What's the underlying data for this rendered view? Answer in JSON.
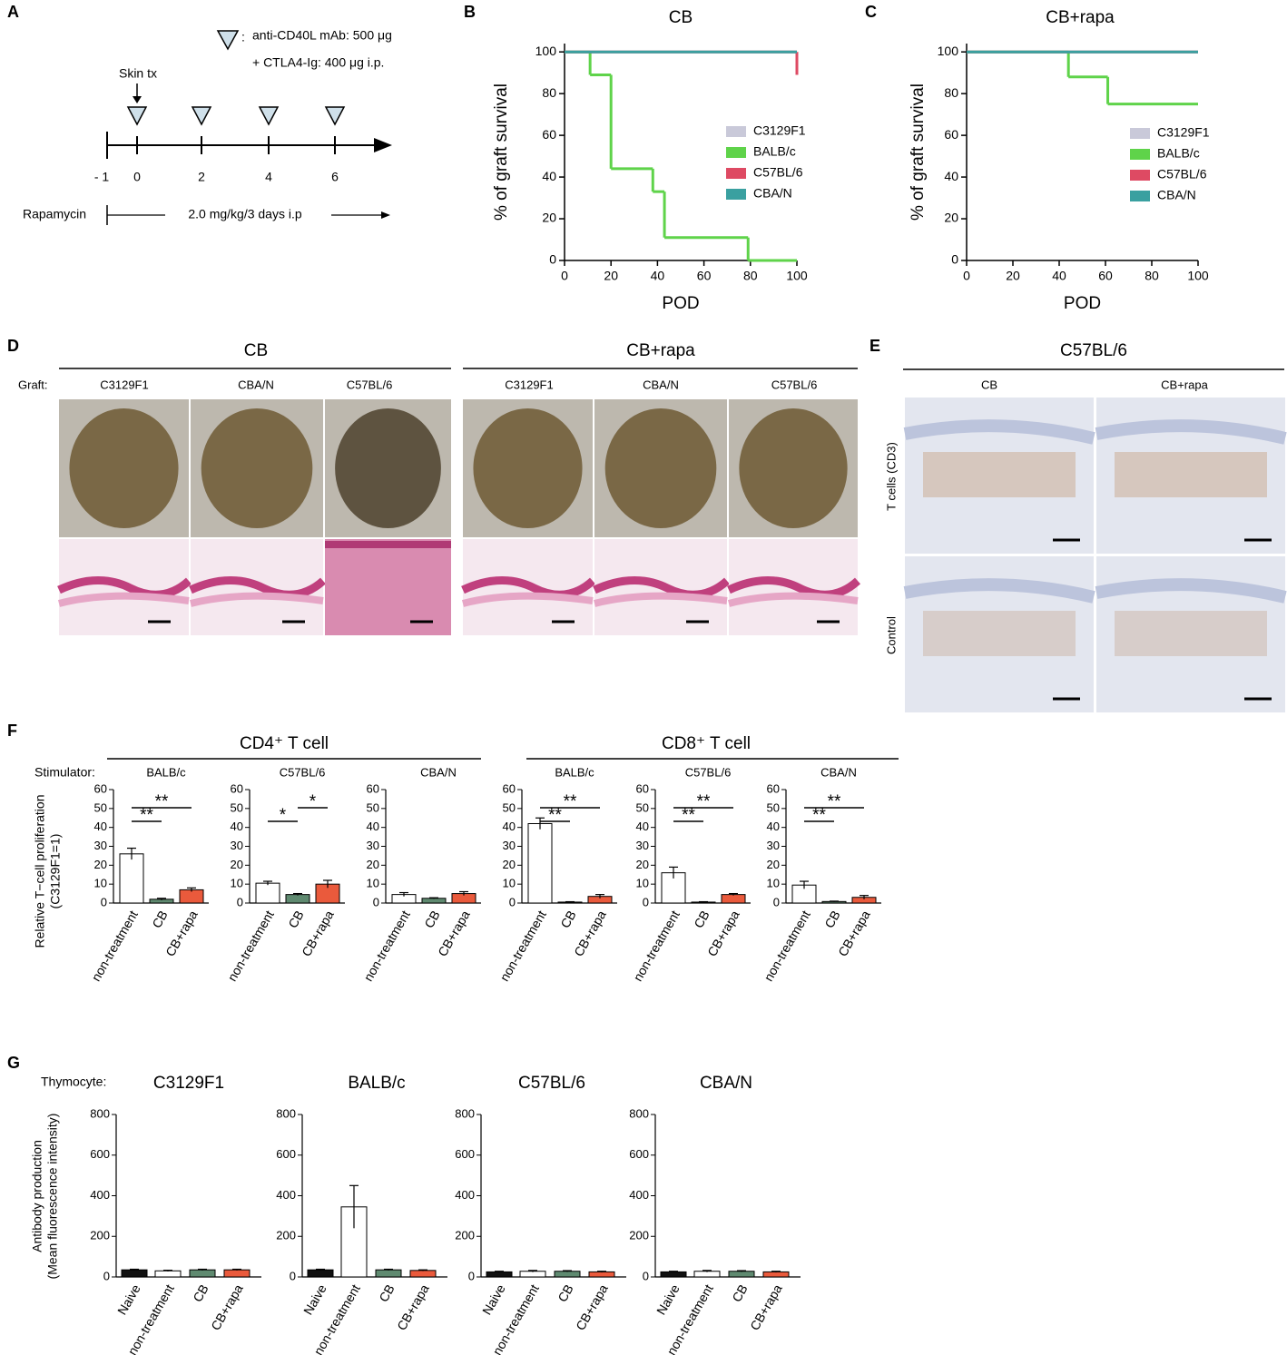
{
  "diagram": {
    "label": "A",
    "legend_lines": [
      "anti-CD40L mAb: 500 μg",
      "+ CTLA4-Ig: 400 μg i.p."
    ],
    "colon": ":",
    "skin_tx": "Skin tx",
    "timeline_ticks": [
      "- 1",
      "0",
      "2",
      "4",
      "6"
    ],
    "rapamycin": "Rapamycin",
    "dose": "2.0 mg/kg/3 days i.p"
  },
  "panel_d": {
    "label": "D",
    "groups": [
      "CB",
      "CB+rapa"
    ],
    "graft": "Graft:",
    "columns": [
      "C3129F1",
      "CBA/N",
      "C57BL/6",
      "C3129F1",
      "CBA/N",
      "C57BL/6"
    ]
  },
  "panel_e": {
    "label": "E",
    "title": "C57BL/6",
    "columns": [
      "CB",
      "CB+rapa"
    ],
    "rows": [
      "T cells (CD3)",
      "Control"
    ]
  },
  "panel_f": {
    "label": "F",
    "groups": [
      "CD4⁺ T cell",
      "CD8⁺ T cell"
    ],
    "stimulator": "Stimulator:",
    "ylabel": [
      "Relative T−cell proliferation",
      "(C3129F1=1)"
    ]
  },
  "panel_g": {
    "label": "G",
    "thymocyte": "Thymocyte:",
    "ylabel": [
      "Antibody production",
      "(Mean fluorescence intensity)"
    ]
  },
  "chart_data": [
    {
      "type": "survival",
      "panel": "B",
      "title": "CB",
      "xlabel": "POD",
      "ylabel": "% of graft survival",
      "xlim": [
        0,
        100
      ],
      "ylim": [
        0,
        104
      ],
      "xticks": [
        0,
        20,
        40,
        60,
        80,
        100
      ],
      "yticks": [
        0,
        20,
        40,
        60,
        80,
        100
      ],
      "series": [
        {
          "name": "C3129F1",
          "color": "#c9c9d9",
          "x": [
            0,
            100
          ],
          "values": [
            100,
            100
          ]
        },
        {
          "name": "BALB/c",
          "color": "#5fd34a",
          "x": [
            0,
            11,
            20,
            38,
            43,
            79,
            100
          ],
          "values": [
            100,
            89,
            44,
            33,
            11,
            0,
            0
          ]
        },
        {
          "name": "C57BL/6",
          "color": "#de4a63",
          "x": [
            0,
            100
          ],
          "values": [
            100,
            89
          ]
        },
        {
          "name": "CBA/N",
          "color": "#3aa0a0",
          "x": [
            0,
            100
          ],
          "values": [
            100,
            100
          ]
        }
      ]
    },
    {
      "type": "survival",
      "panel": "C",
      "title": "CB+rapa",
      "xlabel": "POD",
      "ylabel": "% of graft survival",
      "xlim": [
        0,
        100
      ],
      "ylim": [
        0,
        104
      ],
      "xticks": [
        0,
        20,
        40,
        60,
        80,
        100
      ],
      "yticks": [
        0,
        20,
        40,
        60,
        80,
        100
      ],
      "series": [
        {
          "name": "C3129F1",
          "color": "#c9c9d9",
          "x": [
            0,
            100
          ],
          "values": [
            100,
            100
          ]
        },
        {
          "name": "BALB/c",
          "color": "#5fd34a",
          "x": [
            0,
            44,
            61,
            100
          ],
          "values": [
            100,
            88,
            75,
            75
          ]
        },
        {
          "name": "C57BL/6",
          "color": "#de4a63",
          "x": [
            0,
            100
          ],
          "values": [
            100,
            100
          ]
        },
        {
          "name": "CBA/N",
          "color": "#3aa0a0",
          "x": [
            0,
            100
          ],
          "values": [
            100,
            100
          ]
        }
      ]
    },
    {
      "type": "bar",
      "title": "BALB/c",
      "categories": [
        "non-treatment",
        "CB",
        "CB+rapa"
      ],
      "values": [
        26,
        2,
        7
      ],
      "errors": [
        3,
        0.5,
        1
      ],
      "colors": [
        "#ffffff",
        "#5f8a70",
        "#ea5a3c"
      ],
      "ylim": [
        0,
        60
      ],
      "yticks": [
        0,
        10,
        20,
        30,
        40,
        50,
        60
      ],
      "annotations": [
        {
          "label": "**",
          "from": 0,
          "to": 1
        },
        {
          "label": "**",
          "from": 0,
          "to": 2
        }
      ]
    },
    {
      "type": "bar",
      "title": "C57BL/6",
      "categories": [
        "non-treatment",
        "CB",
        "CB+rapa"
      ],
      "values": [
        10.5,
        4.5,
        10
      ],
      "errors": [
        1,
        0.5,
        2
      ],
      "colors": [
        "#ffffff",
        "#5f8a70",
        "#ea5a3c"
      ],
      "ylim": [
        0,
        60
      ],
      "yticks": [
        0,
        10,
        20,
        30,
        40,
        50,
        60
      ],
      "annotations": [
        {
          "label": "*",
          "from": 0,
          "to": 1
        },
        {
          "label": "*",
          "from": 1,
          "to": 2
        }
      ]
    },
    {
      "type": "bar",
      "title": "CBA/N",
      "categories": [
        "non-treatment",
        "CB",
        "CB+rapa"
      ],
      "values": [
        4.5,
        2.5,
        5
      ],
      "errors": [
        1,
        0.3,
        1
      ],
      "colors": [
        "#ffffff",
        "#5f8a70",
        "#ea5a3c"
      ],
      "ylim": [
        0,
        60
      ],
      "yticks": [
        0,
        10,
        20,
        30,
        40,
        50,
        60
      ],
      "annotations": []
    },
    {
      "type": "bar",
      "title": "BALB/c",
      "categories": [
        "non-treatment",
        "CB",
        "CB+rapa"
      ],
      "values": [
        42,
        0.5,
        3.5
      ],
      "errors": [
        3,
        0.2,
        1
      ],
      "colors": [
        "#ffffff",
        "#5f8a70",
        "#ea5a3c"
      ],
      "ylim": [
        0,
        60
      ],
      "yticks": [
        0,
        10,
        20,
        30,
        40,
        50,
        60
      ],
      "annotations": [
        {
          "label": "**",
          "from": 0,
          "to": 1
        },
        {
          "label": "**",
          "from": 0,
          "to": 2
        }
      ]
    },
    {
      "type": "bar",
      "title": "C57BL/6",
      "categories": [
        "non-treatment",
        "CB",
        "CB+rapa"
      ],
      "values": [
        16,
        0.5,
        4.5
      ],
      "errors": [
        3,
        0.2,
        0.5
      ],
      "colors": [
        "#ffffff",
        "#5f8a70",
        "#ea5a3c"
      ],
      "ylim": [
        0,
        60
      ],
      "yticks": [
        0,
        10,
        20,
        30,
        40,
        50,
        60
      ],
      "annotations": [
        {
          "label": "**",
          "from": 0,
          "to": 1
        },
        {
          "label": "**",
          "from": 0,
          "to": 2
        }
      ]
    },
    {
      "type": "bar",
      "title": "CBA/N",
      "categories": [
        "non-treatment",
        "CB",
        "CB+rapa"
      ],
      "values": [
        9.5,
        0.8,
        3
      ],
      "errors": [
        2,
        0.2,
        1
      ],
      "colors": [
        "#ffffff",
        "#5f8a70",
        "#ea5a3c"
      ],
      "ylim": [
        0,
        60
      ],
      "yticks": [
        0,
        10,
        20,
        30,
        40,
        50,
        60
      ],
      "annotations": [
        {
          "label": "**",
          "from": 0,
          "to": 1
        },
        {
          "label": "**",
          "from": 0,
          "to": 2
        }
      ]
    },
    {
      "type": "bar",
      "title": "C3129F1",
      "categories": [
        "Naive",
        "non-treatment",
        "CB",
        "CB+rapa"
      ],
      "values": [
        35,
        30,
        35,
        35
      ],
      "errors": [
        3,
        3,
        3,
        3
      ],
      "colors": [
        "#111111",
        "#ffffff",
        "#5f8a70",
        "#ea5a3c"
      ],
      "ylim": [
        0,
        800
      ],
      "yticks": [
        0,
        200,
        400,
        600,
        800
      ],
      "annotations": []
    },
    {
      "type": "bar",
      "title": "BALB/c",
      "categories": [
        "Naive",
        "non-treatment",
        "CB",
        "CB+rapa"
      ],
      "values": [
        35,
        345,
        35,
        32
      ],
      "errors": [
        3,
        105,
        3,
        3
      ],
      "colors": [
        "#111111",
        "#ffffff",
        "#5f8a70",
        "#ea5a3c"
      ],
      "ylim": [
        0,
        800
      ],
      "yticks": [
        0,
        200,
        400,
        600,
        800
      ],
      "annotations": []
    },
    {
      "type": "bar",
      "title": "C57BL/6",
      "categories": [
        "Naive",
        "non-treatment",
        "CB",
        "CB+rapa"
      ],
      "values": [
        25,
        28,
        28,
        25
      ],
      "errors": [
        3,
        4,
        3,
        3
      ],
      "colors": [
        "#111111",
        "#ffffff",
        "#5f8a70",
        "#ea5a3c"
      ],
      "ylim": [
        0,
        800
      ],
      "yticks": [
        0,
        200,
        400,
        600,
        800
      ],
      "annotations": []
    },
    {
      "type": "bar",
      "title": "CBA/N",
      "categories": [
        "Naive",
        "non-treatment",
        "CB",
        "CB+rapa"
      ],
      "values": [
        25,
        28,
        28,
        25
      ],
      "errors": [
        3,
        4,
        3,
        3
      ],
      "colors": [
        "#111111",
        "#ffffff",
        "#5f8a70",
        "#ea5a3c"
      ],
      "ylim": [
        0,
        800
      ],
      "yticks": [
        0,
        200,
        400,
        600,
        800
      ],
      "annotations": []
    }
  ]
}
